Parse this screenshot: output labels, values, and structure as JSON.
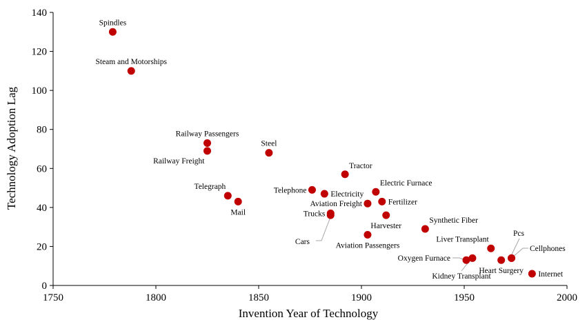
{
  "chart_data": {
    "type": "scatter",
    "title": "",
    "xlabel": "Invention  Year of Technology",
    "ylabel": "Technology Adoption Lag",
    "xlim": [
      1750,
      2000
    ],
    "ylim": [
      0,
      140
    ],
    "xticks": [
      1750,
      1800,
      1850,
      1900,
      1950,
      2000
    ],
    "yticks": [
      0,
      20,
      40,
      60,
      80,
      100,
      120,
      140
    ],
    "grid": false,
    "legend": "none",
    "marker_color": "#c00000",
    "leader_line_color": "#a6a6a6",
    "points": [
      {
        "label": "Spindles",
        "x": 1779,
        "y": 130,
        "label_pos": "above"
      },
      {
        "label": "Steam and Motorships",
        "x": 1788,
        "y": 110,
        "label_pos": "above"
      },
      {
        "label": "Railway Passengers",
        "x": 1825,
        "y": 73,
        "label_pos": "above"
      },
      {
        "label": "Railway Freight",
        "x": 1825,
        "y": 69,
        "label_pos": "below-left"
      },
      {
        "label": "Steel",
        "x": 1855,
        "y": 68,
        "label_pos": "above"
      },
      {
        "label": "Tractor",
        "x": 1892,
        "y": 57,
        "label_pos": "above-right"
      },
      {
        "label": "Telephone",
        "x": 1876,
        "y": 49,
        "label_pos": "left"
      },
      {
        "label": "Electricity",
        "x": 1882,
        "y": 47,
        "label_pos": "right"
      },
      {
        "label": "Electric Furnace",
        "x": 1907,
        "y": 48,
        "label_pos": "above-right"
      },
      {
        "label": "Telegraph",
        "x": 1835,
        "y": 46,
        "label_pos": "above-left"
      },
      {
        "label": "Mail",
        "x": 1840,
        "y": 43,
        "label_pos": "below"
      },
      {
        "label": "Fertilizer",
        "x": 1910,
        "y": 43,
        "label_pos": "right"
      },
      {
        "label": "Aviation Freight",
        "x": 1903,
        "y": 42,
        "label_pos": "left"
      },
      {
        "label": "Trucks",
        "x": 1885,
        "y": 37,
        "label_pos": "left"
      },
      {
        "label": "Cars",
        "x": 1885,
        "y": 36,
        "label_pos": "leader"
      },
      {
        "label": "Harvester",
        "x": 1912,
        "y": 36,
        "label_pos": "below"
      },
      {
        "label": "Synthetic Fiber",
        "x": 1931,
        "y": 29,
        "label_pos": "above-right"
      },
      {
        "label": "Aviation Passengers",
        "x": 1903,
        "y": 26,
        "label_pos": "below"
      },
      {
        "label": "Liver Transplant",
        "x": 1963,
        "y": 19,
        "label_pos": "above-left"
      },
      {
        "label": "Pcs",
        "x": 1973,
        "y": 14,
        "label_pos": "leader"
      },
      {
        "label": "Cellphones",
        "x": 1973,
        "y": 14,
        "label_pos": "leader"
      },
      {
        "label": "Oxygen Furnace",
        "x": 1951,
        "y": 13,
        "label_pos": "leader"
      },
      {
        "label": "Kidney Transplant",
        "x": 1954,
        "y": 14,
        "label_pos": "leader"
      },
      {
        "label": "Heart Surgery",
        "x": 1968,
        "y": 13,
        "label_pos": "below"
      },
      {
        "label": "Internet",
        "x": 1983,
        "y": 6,
        "label_pos": "right"
      }
    ]
  }
}
